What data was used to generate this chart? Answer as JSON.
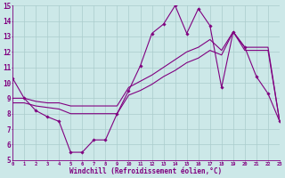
{
  "background_color": "#cce8e8",
  "grid_color": "#aacccc",
  "line_color": "#800080",
  "spine_color": "#800080",
  "x_hours": [
    0,
    1,
    2,
    3,
    4,
    5,
    6,
    7,
    8,
    9,
    10,
    11,
    12,
    13,
    14,
    15,
    16,
    17,
    18,
    19,
    20,
    21,
    22,
    23
  ],
  "y_zigzag": [
    10.3,
    9.0,
    8.2,
    7.8,
    7.5,
    5.5,
    5.5,
    6.3,
    6.3,
    8.0,
    9.5,
    11.1,
    13.2,
    13.8,
    15.0,
    13.2,
    14.8,
    13.7,
    9.7,
    13.3,
    12.3,
    10.4,
    9.3,
    7.5
  ],
  "y_trend_upper": [
    9.0,
    9.0,
    8.8,
    8.7,
    8.7,
    8.5,
    8.5,
    8.5,
    8.5,
    8.5,
    9.7,
    10.1,
    10.5,
    11.0,
    11.5,
    12.0,
    12.3,
    12.8,
    12.1,
    13.3,
    12.3,
    12.3,
    12.3,
    7.5
  ],
  "y_trend_lower": [
    8.7,
    8.7,
    8.5,
    8.4,
    8.3,
    8.0,
    8.0,
    8.0,
    8.0,
    8.0,
    9.2,
    9.5,
    9.9,
    10.4,
    10.8,
    11.3,
    11.6,
    12.1,
    11.8,
    13.3,
    12.1,
    12.1,
    12.1,
    7.5
  ],
  "ylim": [
    5,
    15
  ],
  "xlim": [
    0,
    23
  ],
  "yticks": [
    5,
    6,
    7,
    8,
    9,
    10,
    11,
    12,
    13,
    14,
    15
  ],
  "xticks": [
    0,
    1,
    2,
    3,
    4,
    5,
    6,
    7,
    8,
    9,
    10,
    11,
    12,
    13,
    14,
    15,
    16,
    17,
    18,
    19,
    20,
    21,
    22,
    23
  ],
  "xlabel": "Windchill (Refroidissement éolien,°C)"
}
